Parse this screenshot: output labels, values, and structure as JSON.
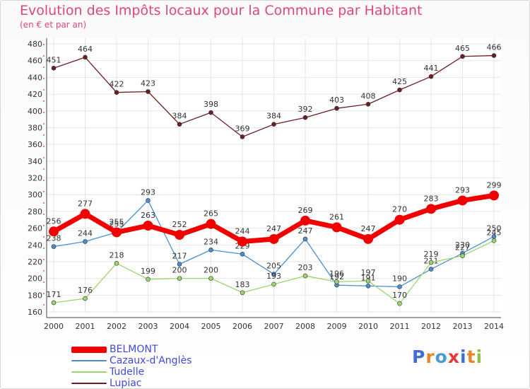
{
  "title": "Evolution des Impôts locaux pour la Commune par Habitant",
  "subtitle": "(en € et par an)",
  "logo": "Proxiti",
  "chart_data": {
    "type": "line",
    "x": [
      2000,
      2001,
      2002,
      2003,
      2004,
      2005,
      2006,
      2007,
      2008,
      2009,
      2010,
      2011,
      2012,
      2013,
      2014
    ],
    "ylim": [
      160,
      480
    ],
    "yticks": [
      160,
      180,
      200,
      220,
      240,
      260,
      280,
      300,
      320,
      340,
      360,
      380,
      400,
      420,
      440,
      460,
      480
    ],
    "grid": true,
    "legend_position": "bottom-left",
    "series": [
      {
        "name": "Lupiac",
        "color": "#6b1f24",
        "values": [
          451,
          464,
          422,
          423,
          384,
          398,
          369,
          384,
          392,
          403,
          408,
          425,
          441,
          465,
          466
        ]
      },
      {
        "name": "Cazaux-d'Anglès",
        "color": "#4a8ed0",
        "values": [
          238,
          244,
          255,
          293,
          217,
          234,
          229,
          205,
          247,
          192,
          191,
          190,
          211,
          230,
          250
        ]
      },
      {
        "name": "Tudelle",
        "color": "#9ad66c",
        "values": [
          171,
          176,
          218,
          199,
          200,
          200,
          183,
          193,
          203,
          196,
          197,
          170,
          219,
          227,
          245
        ]
      },
      {
        "name": "BELMONT",
        "color": "#f00000",
        "values": [
          256,
          277,
          255,
          263,
          252,
          265,
          244,
          247,
          269,
          261,
          247,
          270,
          283,
          293,
          299
        ]
      }
    ]
  }
}
